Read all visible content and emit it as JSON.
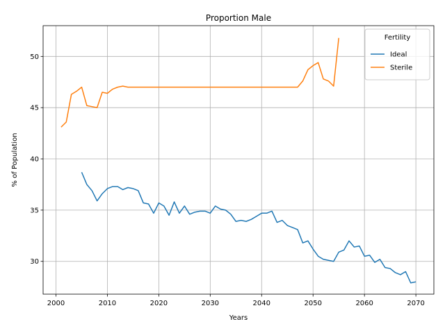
{
  "chart_data": {
    "type": "line",
    "title": "Proportion Male",
    "xlabel": "Years",
    "ylabel": "% of Population",
    "xlim": [
      1997.5,
      2073.5
    ],
    "ylim": [
      26.8,
      53.0
    ],
    "x_ticks": [
      2000,
      2010,
      2020,
      2030,
      2040,
      2050,
      2060,
      2070
    ],
    "y_ticks": [
      30,
      35,
      40,
      45,
      50
    ],
    "grid": true,
    "legend": {
      "title": "Fertility",
      "position": "top-right"
    },
    "series": [
      {
        "name": "Ideal",
        "color": "#1f77b4",
        "x": [
          2005,
          2006,
          2007,
          2008,
          2009,
          2010,
          2011,
          2012,
          2013,
          2014,
          2015,
          2016,
          2017,
          2018,
          2019,
          2020,
          2021,
          2022,
          2023,
          2024,
          2025,
          2026,
          2027,
          2028,
          2029,
          2030,
          2031,
          2032,
          2033,
          2034,
          2035,
          2036,
          2037,
          2038,
          2039,
          2040,
          2041,
          2042,
          2043,
          2044,
          2045,
          2046,
          2047,
          2048,
          2049,
          2050,
          2051,
          2052,
          2053,
          2054,
          2055,
          2056,
          2057,
          2058,
          2059,
          2060,
          2061,
          2062,
          2063,
          2064,
          2065,
          2066,
          2067,
          2068,
          2069,
          2070
        ],
        "y": [
          38.7,
          37.5,
          36.9,
          35.9,
          36.6,
          37.1,
          37.3,
          37.3,
          37.0,
          37.2,
          37.1,
          36.9,
          35.7,
          35.6,
          34.7,
          35.7,
          35.4,
          34.5,
          35.8,
          34.7,
          35.4,
          34.6,
          34.8,
          34.9,
          34.9,
          34.7,
          35.4,
          35.1,
          35.0,
          34.6,
          33.9,
          34.0,
          33.9,
          34.1,
          34.4,
          34.7,
          34.7,
          34.9,
          33.8,
          34.0,
          33.5,
          33.3,
          33.1,
          31.8,
          32.0,
          31.2,
          30.5,
          30.2,
          30.1,
          30.0,
          30.9,
          31.1,
          32.0,
          31.4,
          31.5,
          30.5,
          30.6,
          29.9,
          30.2,
          29.4,
          29.3,
          28.9,
          28.7,
          29.0,
          27.9,
          28.0
        ]
      },
      {
        "name": "Sterile",
        "color": "#ff7f0e",
        "x": [
          2001,
          2002,
          2003,
          2004,
          2005,
          2006,
          2007,
          2008,
          2009,
          2010,
          2011,
          2012,
          2013,
          2014,
          2015,
          2016,
          2017,
          2018,
          2019,
          2020,
          2021,
          2022,
          2023,
          2024,
          2025,
          2026,
          2027,
          2028,
          2029,
          2030,
          2031,
          2032,
          2033,
          2034,
          2035,
          2036,
          2037,
          2038,
          2039,
          2040,
          2041,
          2042,
          2043,
          2044,
          2045,
          2046,
          2047,
          2048,
          2049,
          2050,
          2051,
          2052,
          2053,
          2054,
          2055
        ],
        "y": [
          43.1,
          43.6,
          46.3,
          46.6,
          47.0,
          45.2,
          45.1,
          45.0,
          46.5,
          46.4,
          46.8,
          47.0,
          47.1,
          47.0,
          47.0,
          47.0,
          47.0,
          47.0,
          47.0,
          47.0,
          47.0,
          47.0,
          47.0,
          47.0,
          47.0,
          47.0,
          47.0,
          47.0,
          47.0,
          47.0,
          47.0,
          47.0,
          47.0,
          47.0,
          47.0,
          47.0,
          47.0,
          47.0,
          47.0,
          47.0,
          47.0,
          47.0,
          47.0,
          47.0,
          47.0,
          47.0,
          47.0,
          47.6,
          48.7,
          49.1,
          49.4,
          47.8,
          47.6,
          47.1,
          51.8
        ]
      }
    ]
  }
}
